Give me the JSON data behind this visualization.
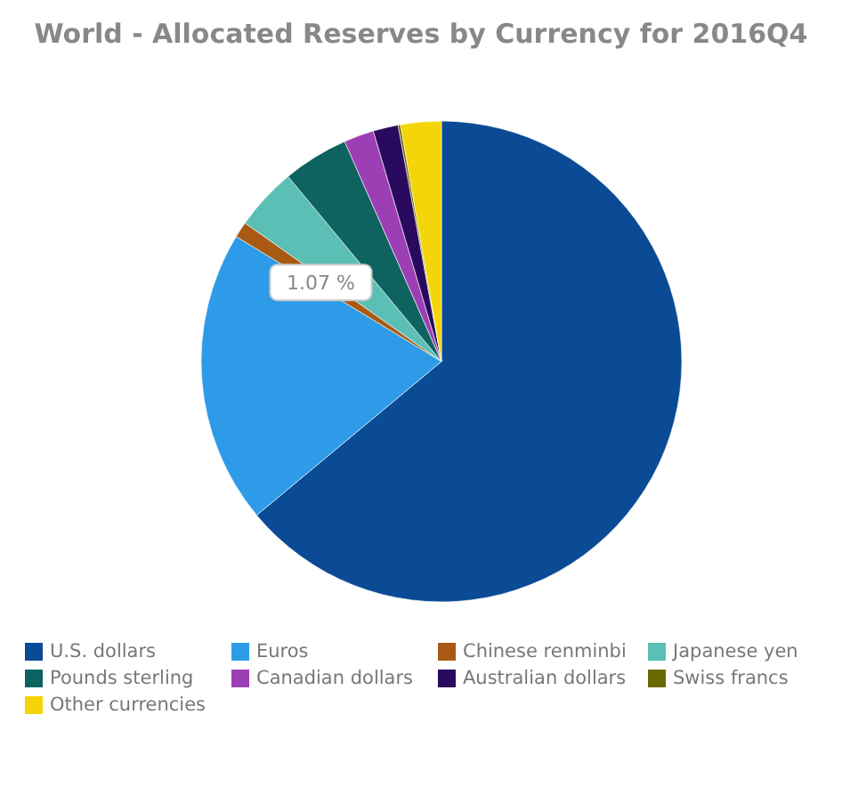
{
  "chart_data": {
    "type": "pie",
    "title": "World - Allocated Reserves by Currency for 2016Q4",
    "categories": [
      "U.S. dollars",
      "Euros",
      "Chinese renminbi",
      "Japanese yen",
      "Pounds sterling",
      "Canadian dollars",
      "Australian dollars",
      "Swiss francs",
      "Other currencies"
    ],
    "values": [
      63.96,
      19.74,
      1.07,
      4.21,
      4.42,
      2.02,
      1.69,
      0.16,
      2.73
    ],
    "colors": [
      "#0b4a94",
      "#2d9be8",
      "#a85a14",
      "#5bbfb5",
      "#0e6260",
      "#9c3fb5",
      "#2a0a5e",
      "#6b6a00",
      "#f3d50a"
    ],
    "value_labels": [
      null,
      null,
      "1.07 %",
      null,
      null,
      null,
      null,
      null,
      null
    ],
    "legend": "bottom"
  }
}
